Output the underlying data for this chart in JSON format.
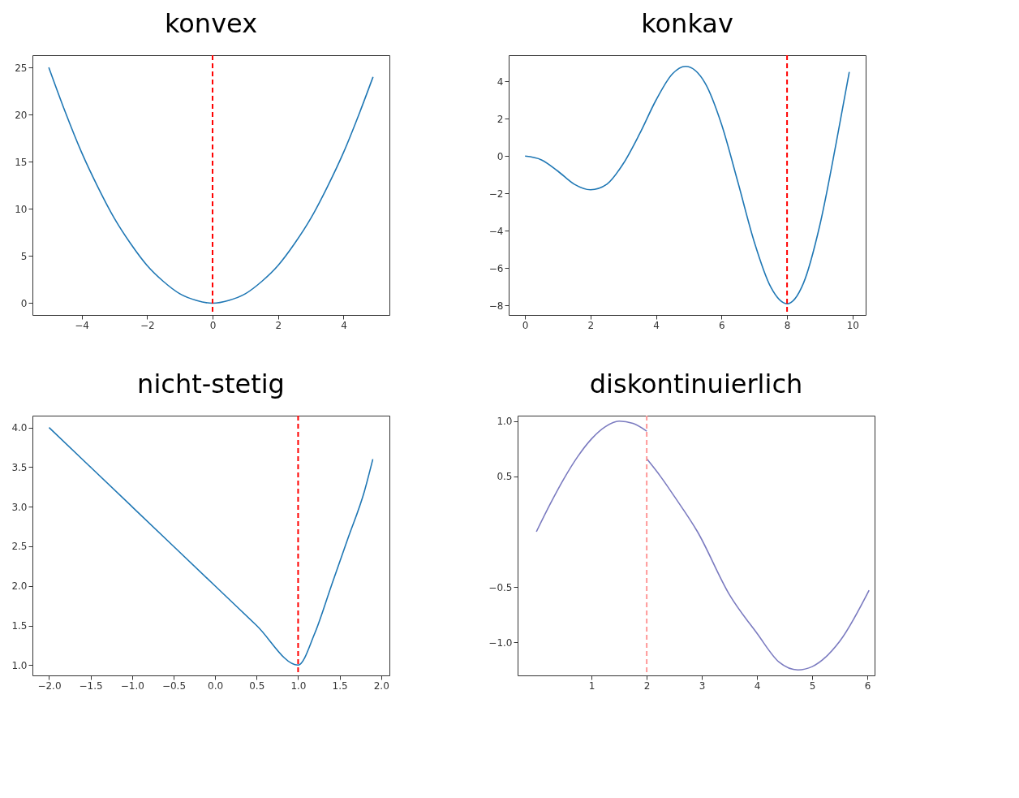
{
  "chart_data": [
    {
      "type": "line",
      "title": "konvex",
      "x": [
        -5,
        -4.5,
        -4,
        -3.5,
        -3,
        -2.5,
        -2,
        -1.5,
        -1,
        -0.5,
        0,
        0.5,
        1,
        1.5,
        2,
        2.5,
        3,
        3.5,
        4,
        4.5,
        4.9
      ],
      "series": [
        {
          "color": "#1f77b4",
          "values": [
            25,
            20.3,
            16,
            12.3,
            9,
            6.3,
            4,
            2.3,
            1,
            0.3,
            0,
            0.3,
            1,
            2.3,
            4,
            6.3,
            9,
            12.3,
            16,
            20.3,
            24
          ]
        }
      ],
      "xlim": [
        -5.5,
        5.4
      ],
      "ylim": [
        -1.25,
        26.3
      ],
      "xticks": [
        -4,
        -2,
        0,
        2,
        4
      ],
      "yticks": [
        0,
        5,
        10,
        15,
        20,
        25
      ],
      "grid": false,
      "ref_lines": [
        {
          "axis": "x",
          "value": 0,
          "color": "#ff0000",
          "line_style": "dashed"
        }
      ]
    },
    {
      "type": "line",
      "title": "konkav",
      "x": [
        0,
        0.5,
        1,
        1.5,
        2,
        2.5,
        3,
        3.5,
        4,
        4.5,
        4.9,
        5.5,
        6,
        6.5,
        7,
        7.5,
        8,
        8.5,
        9,
        9.5,
        9.9
      ],
      "series": [
        {
          "color": "#1f77b4",
          "values": [
            0,
            -0.2,
            -0.8,
            -1.5,
            -1.8,
            -1.5,
            -0.4,
            1.2,
            3.0,
            4.4,
            4.8,
            3.9,
            1.7,
            -1.4,
            -4.6,
            -7.0,
            -7.9,
            -6.8,
            -3.7,
            0.7,
            4.5
          ]
        }
      ],
      "xlim": [
        -0.5,
        10.4
      ],
      "ylim": [
        -8.5,
        5.4
      ],
      "xticks": [
        0,
        2,
        4,
        6,
        8,
        10
      ],
      "yticks": [
        -8,
        -6,
        -4,
        -2,
        0,
        2,
        4
      ],
      "grid": false,
      "ref_lines": [
        {
          "axis": "x",
          "value": 8,
          "color": "#ff0000",
          "line_style": "dashed"
        }
      ]
    },
    {
      "type": "line",
      "title": "nicht-stetig",
      "x": [
        -2,
        -1.5,
        -1,
        -0.5,
        0,
        0.5,
        1,
        1.2,
        1.4,
        1.6,
        1.8,
        1.9
      ],
      "series": [
        {
          "color": "#1f77b4",
          "values": [
            4,
            3.5,
            3,
            2.5,
            2,
            1.5,
            1,
            1.4,
            2.0,
            2.6,
            3.2,
            3.6
          ]
        }
      ],
      "xlim": [
        -2.2,
        2.1
      ],
      "ylim": [
        0.87,
        4.15
      ],
      "xticks": [
        {
          "value": -2,
          "label": "−2.0"
        },
        {
          "value": -1.5,
          "label": "−1.5"
        },
        {
          "value": -1,
          "label": "−1.0"
        },
        {
          "value": -0.5,
          "label": "−0.5"
        },
        {
          "value": 0,
          "label": "0.0"
        },
        {
          "value": 0.5,
          "label": "0.5"
        },
        {
          "value": 1,
          "label": "1.0"
        },
        {
          "value": 1.5,
          "label": "1.5"
        },
        {
          "value": 2,
          "label": "2.0"
        }
      ],
      "yticks": [
        {
          "value": 1,
          "label": "1.0"
        },
        {
          "value": 1.5,
          "label": "1.5"
        },
        {
          "value": 2,
          "label": "2.0"
        },
        {
          "value": 2.5,
          "label": "2.5"
        },
        {
          "value": 3,
          "label": "3.0"
        },
        {
          "value": 3.5,
          "label": "3.5"
        },
        {
          "value": 4,
          "label": "4.0"
        }
      ],
      "grid": false,
      "ref_lines": [
        {
          "axis": "x",
          "value": 1,
          "color": "#ff0000",
          "line_style": "dashed"
        }
      ]
    },
    {
      "type": "line",
      "title": "diskontinuierlich",
      "series": [
        {
          "color": "#7b7bc0",
          "x": [
            0,
            0.25,
            0.5,
            0.75,
            1,
            1.25,
            1.5,
            1.75,
            2
          ],
          "values": [
            0,
            0.25,
            0.48,
            0.68,
            0.84,
            0.95,
            1.0,
            0.98,
            0.91
          ]
        },
        {
          "color": "#7b7bc0",
          "x": [
            2,
            2.25,
            2.5,
            2.92,
            3.5,
            4,
            4.4,
            4.74,
            5,
            5.5,
            6.03
          ],
          "values": [
            0.66,
            0.5,
            0.32,
            0,
            -0.57,
            -0.92,
            -1.18,
            -1.25,
            -1.22,
            -0.99,
            -0.53
          ]
        }
      ],
      "xlim": [
        -0.34,
        6.13
      ],
      "ylim": [
        -1.3,
        1.05
      ],
      "xticks": [
        1,
        2,
        3,
        4,
        5,
        6
      ],
      "yticks": [
        {
          "value": -1,
          "label": "−1.0"
        },
        {
          "value": -0.5,
          "label": "−0.5"
        },
        {
          "value": 0.5,
          "label": "0.5"
        },
        {
          "value": 1,
          "label": "1.0"
        }
      ],
      "grid": false,
      "ref_lines": [
        {
          "axis": "x",
          "value": 2,
          "color": "#ff9999",
          "line_style": "dashed"
        }
      ]
    }
  ]
}
